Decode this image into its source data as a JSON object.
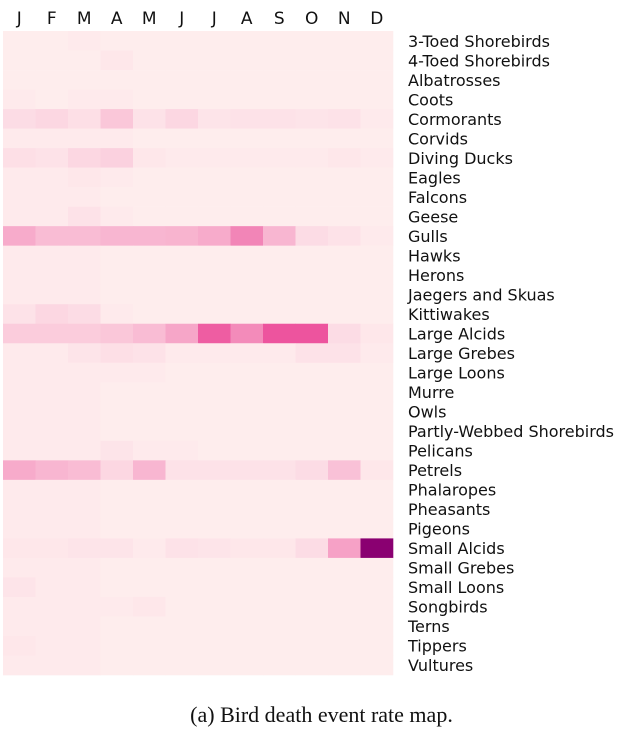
{
  "chart_data": {
    "type": "heatmap",
    "columns": [
      "J",
      "F",
      "M",
      "A",
      "M",
      "J",
      "J",
      "A",
      "S",
      "O",
      "N",
      "D"
    ],
    "rows": [
      "3-Toed Shorebirds",
      "4-Toed Shorebirds",
      "Albatrosses",
      "Coots",
      "Cormorants",
      "Corvids",
      "Diving Ducks",
      "Eagles",
      "Falcons",
      "Geese",
      "Gulls",
      "Hawks",
      "Herons",
      "Jaegers and Skuas",
      "Kittiwakes",
      "Large Alcids",
      "Large Grebes",
      "Large Loons",
      "Murre",
      "Owls",
      "Partly-Webbed Shorebirds",
      "Pelicans",
      "Petrels",
      "Phalaropes",
      "Pheasants",
      "Pigeons",
      "Small Alcids",
      "Small Grebes",
      "Small Loons",
      "Songbirds",
      "Terns",
      "Tippers",
      "Vultures"
    ],
    "values": [
      [
        0.02,
        0.02,
        0.03,
        0.02,
        0.02,
        0.02,
        0.02,
        0.02,
        0.02,
        0.02,
        0.02,
        0.02
      ],
      [
        0.02,
        0.02,
        0.02,
        0.04,
        0.02,
        0.02,
        0.02,
        0.02,
        0.02,
        0.02,
        0.02,
        0.02
      ],
      [
        0.02,
        0.02,
        0.02,
        0.02,
        0.02,
        0.02,
        0.02,
        0.02,
        0.02,
        0.02,
        0.02,
        0.02
      ],
      [
        0.03,
        0.02,
        0.03,
        0.03,
        0.02,
        0.02,
        0.02,
        0.02,
        0.02,
        0.02,
        0.02,
        0.02
      ],
      [
        0.08,
        0.1,
        0.07,
        0.16,
        0.06,
        0.1,
        0.05,
        0.06,
        0.06,
        0.05,
        0.06,
        0.03
      ],
      [
        0.03,
        0.03,
        0.03,
        0.03,
        0.02,
        0.02,
        0.02,
        0.02,
        0.02,
        0.02,
        0.02,
        0.02
      ],
      [
        0.07,
        0.06,
        0.1,
        0.12,
        0.04,
        0.03,
        0.03,
        0.03,
        0.03,
        0.03,
        0.04,
        0.03
      ],
      [
        0.03,
        0.03,
        0.04,
        0.03,
        0.02,
        0.02,
        0.02,
        0.02,
        0.02,
        0.02,
        0.02,
        0.02
      ],
      [
        0.03,
        0.03,
        0.03,
        0.02,
        0.02,
        0.02,
        0.02,
        0.02,
        0.02,
        0.02,
        0.02,
        0.02
      ],
      [
        0.03,
        0.03,
        0.06,
        0.03,
        0.02,
        0.02,
        0.02,
        0.02,
        0.02,
        0.02,
        0.02,
        0.02
      ],
      [
        0.26,
        0.2,
        0.2,
        0.22,
        0.22,
        0.23,
        0.26,
        0.4,
        0.22,
        0.08,
        0.06,
        0.03
      ],
      [
        0.03,
        0.03,
        0.03,
        0.02,
        0.02,
        0.02,
        0.02,
        0.02,
        0.02,
        0.02,
        0.02,
        0.02
      ],
      [
        0.03,
        0.03,
        0.03,
        0.02,
        0.02,
        0.02,
        0.02,
        0.02,
        0.02,
        0.02,
        0.02,
        0.02
      ],
      [
        0.03,
        0.03,
        0.03,
        0.02,
        0.02,
        0.02,
        0.02,
        0.02,
        0.02,
        0.02,
        0.02,
        0.02
      ],
      [
        0.06,
        0.1,
        0.08,
        0.03,
        0.02,
        0.02,
        0.02,
        0.02,
        0.02,
        0.02,
        0.02,
        0.02
      ],
      [
        0.14,
        0.14,
        0.14,
        0.16,
        0.2,
        0.28,
        0.55,
        0.38,
        0.58,
        0.58,
        0.08,
        0.04
      ],
      [
        0.03,
        0.03,
        0.05,
        0.07,
        0.06,
        0.03,
        0.03,
        0.03,
        0.03,
        0.06,
        0.06,
        0.03
      ],
      [
        0.03,
        0.03,
        0.03,
        0.03,
        0.03,
        0.02,
        0.02,
        0.02,
        0.02,
        0.02,
        0.02,
        0.02
      ],
      [
        0.03,
        0.03,
        0.03,
        0.02,
        0.02,
        0.02,
        0.02,
        0.02,
        0.02,
        0.02,
        0.02,
        0.02
      ],
      [
        0.03,
        0.03,
        0.03,
        0.02,
        0.02,
        0.02,
        0.02,
        0.02,
        0.02,
        0.02,
        0.02,
        0.02
      ],
      [
        0.03,
        0.03,
        0.03,
        0.02,
        0.02,
        0.02,
        0.02,
        0.02,
        0.02,
        0.02,
        0.02,
        0.02
      ],
      [
        0.03,
        0.03,
        0.03,
        0.05,
        0.03,
        0.03,
        0.02,
        0.02,
        0.02,
        0.02,
        0.02,
        0.02
      ],
      [
        0.26,
        0.22,
        0.2,
        0.1,
        0.22,
        0.06,
        0.06,
        0.06,
        0.06,
        0.08,
        0.18,
        0.04
      ],
      [
        0.03,
        0.03,
        0.03,
        0.02,
        0.02,
        0.02,
        0.02,
        0.02,
        0.02,
        0.02,
        0.02,
        0.02
      ],
      [
        0.03,
        0.03,
        0.03,
        0.02,
        0.02,
        0.02,
        0.02,
        0.02,
        0.02,
        0.02,
        0.02,
        0.02
      ],
      [
        0.03,
        0.03,
        0.03,
        0.02,
        0.02,
        0.02,
        0.02,
        0.02,
        0.02,
        0.02,
        0.02,
        0.02
      ],
      [
        0.04,
        0.04,
        0.05,
        0.05,
        0.03,
        0.06,
        0.05,
        0.04,
        0.04,
        0.08,
        0.3,
        1.0
      ],
      [
        0.03,
        0.03,
        0.03,
        0.02,
        0.02,
        0.02,
        0.02,
        0.02,
        0.02,
        0.02,
        0.02,
        0.02
      ],
      [
        0.05,
        0.03,
        0.03,
        0.02,
        0.02,
        0.02,
        0.02,
        0.02,
        0.02,
        0.02,
        0.02,
        0.02
      ],
      [
        0.03,
        0.03,
        0.03,
        0.03,
        0.04,
        0.02,
        0.02,
        0.02,
        0.02,
        0.02,
        0.02,
        0.02
      ],
      [
        0.03,
        0.03,
        0.03,
        0.02,
        0.02,
        0.02,
        0.02,
        0.02,
        0.02,
        0.02,
        0.02,
        0.02
      ],
      [
        0.04,
        0.03,
        0.03,
        0.02,
        0.02,
        0.02,
        0.02,
        0.02,
        0.02,
        0.02,
        0.02,
        0.02
      ],
      [
        0.03,
        0.03,
        0.03,
        0.02,
        0.02,
        0.02,
        0.02,
        0.02,
        0.02,
        0.02,
        0.02,
        0.02
      ]
    ],
    "colors": {
      "low": "#fff2f0",
      "mid": "#ec4f9b",
      "high": "#8a0071"
    }
  },
  "caption": "(a) Bird death event rate map."
}
